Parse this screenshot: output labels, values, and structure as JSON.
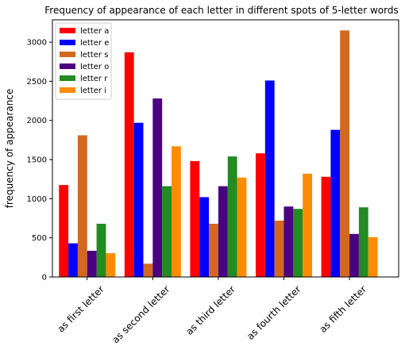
{
  "chart_data": {
    "type": "bar",
    "title": "Frequency of appearance of each letter in different spots of 5-letter words",
    "ylabel": "frequency of appearance",
    "categories": [
      "as first letter",
      "as second letter",
      "as third letter",
      "as fourth letter",
      "as fifth letter"
    ],
    "series": [
      {
        "name": "letter a",
        "color": "#ff0000",
        "values": [
          1175,
          2870,
          1480,
          1580,
          1280
        ]
      },
      {
        "name": "letter e",
        "color": "#0000ff",
        "values": [
          430,
          1970,
          1020,
          2510,
          1880
        ]
      },
      {
        "name": "letter s",
        "color": "#d2691e",
        "values": [
          1810,
          170,
          680,
          720,
          3150
        ]
      },
      {
        "name": "letter o",
        "color": "#4b0082",
        "values": [
          335,
          2280,
          1160,
          900,
          550
        ]
      },
      {
        "name": "letter r",
        "color": "#228b22",
        "values": [
          680,
          1160,
          1540,
          870,
          890
        ]
      },
      {
        "name": "letter i",
        "color": "#ff8c00",
        "values": [
          305,
          1670,
          1270,
          1320,
          510
        ]
      }
    ],
    "ylim": [
      0,
      3285
    ],
    "yticks": [
      0,
      500,
      1000,
      1500,
      2000,
      2500,
      3000
    ],
    "legend": "upper left"
  }
}
